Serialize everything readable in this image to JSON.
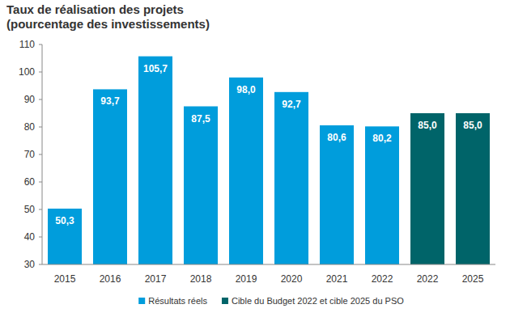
{
  "chart_data": {
    "type": "bar",
    "title": "Taux de réalisation des projets",
    "subtitle": "(pourcentage des investissements)",
    "categories": [
      "2015",
      "2016",
      "2017",
      "2018",
      "2019",
      "2020",
      "2021",
      "2022",
      "2022",
      "2025"
    ],
    "series": [
      {
        "name": "Résultats réels",
        "color": "#009ddc",
        "values": [
          50.3,
          93.7,
          105.7,
          87.5,
          98.0,
          92.7,
          80.6,
          80.2,
          null,
          null
        ],
        "value_labels": [
          "50,3",
          "93,7",
          "105,7",
          "87,5",
          "98,0",
          "92,7",
          "80,6",
          "80,2",
          null,
          null
        ]
      },
      {
        "name": "Cible du Budget 2022 et cible 2025 du PSO",
        "color": "#006469",
        "values": [
          null,
          null,
          null,
          null,
          null,
          null,
          null,
          null,
          85.0,
          85.0
        ],
        "value_labels": [
          null,
          null,
          null,
          null,
          null,
          null,
          null,
          null,
          "85,0",
          "85,0"
        ]
      }
    ],
    "ylim": [
      30,
      110
    ],
    "yticks": [
      30,
      40,
      50,
      60,
      70,
      80,
      90,
      100,
      110
    ],
    "grid": false,
    "data_labels": true,
    "legend": "bottom"
  }
}
